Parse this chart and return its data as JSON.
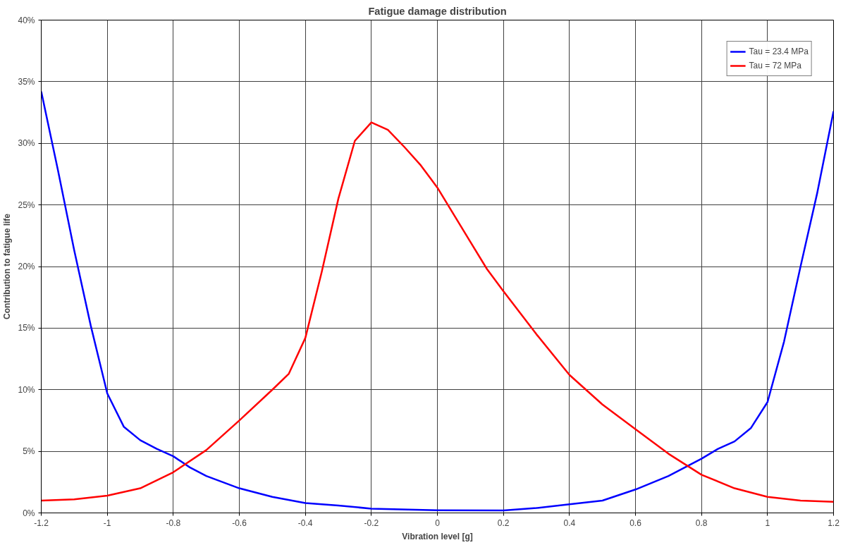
{
  "chart_data": {
    "type": "line",
    "title": "Fatigue damage distribution",
    "xlabel": "Vibration level [g]",
    "ylabel": "Contribution to fatigue life",
    "series": [
      {
        "name": "Tau = 23.4 MPa",
        "color": "#0000ff",
        "x": [
          -1.2,
          -1.15,
          -1.1,
          -1.05,
          -1.0,
          -0.95,
          -0.9,
          -0.85,
          -0.8,
          -0.75,
          -0.7,
          -0.6,
          -0.5,
          -0.4,
          -0.3,
          -0.2,
          0,
          0.2,
          0.3,
          0.4,
          0.5,
          0.6,
          0.7,
          0.8,
          0.85,
          0.9,
          0.95,
          1.0,
          1.05,
          1.1,
          1.15,
          1.2
        ],
        "values": [
          34.2,
          27.9,
          21.3,
          15.2,
          9.7,
          7.0,
          5.9,
          5.2,
          4.6,
          3.7,
          3.0,
          2.0,
          1.3,
          0.8,
          0.6,
          0.35,
          0.22,
          0.2,
          0.4,
          0.7,
          1.0,
          1.9,
          3.0,
          4.4,
          5.2,
          5.8,
          6.9,
          9.0,
          13.9,
          20.0,
          25.9,
          32.6
        ]
      },
      {
        "name": "Tau = 72 MPa",
        "color": "#ff0000",
        "x": [
          -1.2,
          -1.1,
          -1.0,
          -0.9,
          -0.8,
          -0.7,
          -0.6,
          -0.5,
          -0.45,
          -0.4,
          -0.35,
          -0.3,
          -0.25,
          -0.2,
          -0.15,
          -0.1,
          -0.05,
          0,
          0.05,
          0.1,
          0.15,
          0.2,
          0.3,
          0.4,
          0.5,
          0.6,
          0.7,
          0.8,
          0.9,
          1.0,
          1.1,
          1.2
        ],
        "values": [
          1.0,
          1.1,
          1.4,
          2.0,
          3.3,
          5.1,
          7.5,
          10.0,
          11.3,
          14.2,
          19.6,
          25.5,
          30.2,
          31.7,
          31.1,
          29.7,
          28.2,
          26.4,
          24.2,
          22.0,
          19.8,
          18.0,
          14.5,
          11.2,
          8.8,
          6.8,
          4.8,
          3.1,
          2.0,
          1.3,
          1.0,
          0.9
        ]
      }
    ],
    "xlim": [
      -1.2,
      1.2
    ],
    "xticks": [
      -1.2,
      -1,
      -0.8,
      -0.6,
      -0.4,
      -0.2,
      0,
      0.2,
      0.4,
      0.6,
      0.8,
      1,
      1.2
    ],
    "ylim": [
      0,
      40
    ],
    "yticks": [
      {
        "value": 0,
        "label": "0%"
      },
      {
        "value": 5,
        "label": "5%"
      },
      {
        "value": 10,
        "label": "10%"
      },
      {
        "value": 15,
        "label": "15%"
      },
      {
        "value": 20,
        "label": "20%"
      },
      {
        "value": 25,
        "label": "25%"
      },
      {
        "value": 30,
        "label": "30%"
      },
      {
        "value": 35,
        "label": "35%"
      },
      {
        "value": 40,
        "label": "40%"
      }
    ],
    "grid": true,
    "legend": "top right",
    "line_style": "solid",
    "marker": "none"
  }
}
